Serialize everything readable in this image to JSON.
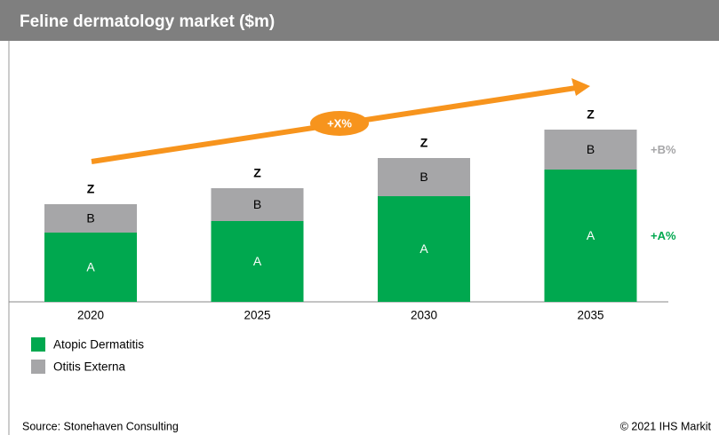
{
  "chart_data": {
    "type": "stacked_bar",
    "title": "Feline dermatology market ($m)",
    "categories": [
      "2020",
      "2025",
      "2030",
      "2035"
    ],
    "series": [
      {
        "name": "Atopic Dermatitis",
        "color": "#00a84f",
        "values": [
          78,
          91,
          119,
          149
        ],
        "value_labels": [
          "A",
          "A",
          "A",
          "A"
        ]
      },
      {
        "name": "Otitis Externa",
        "color": "#a6a6a8",
        "values": [
          32,
          37,
          43,
          45
        ],
        "value_labels": [
          "B",
          "B",
          "B",
          "B"
        ]
      }
    ],
    "total_labels": [
      "Z",
      "Z",
      "Z",
      "Z"
    ],
    "growth_labels": [
      "+A%",
      "+B%"
    ],
    "trend_label": "+X%",
    "trend_color": "#f7941d",
    "ylim": [
      0,
      280
    ],
    "source": "Source: Stonehaven Consulting",
    "copyright": "© 2021 IHS Markit"
  }
}
